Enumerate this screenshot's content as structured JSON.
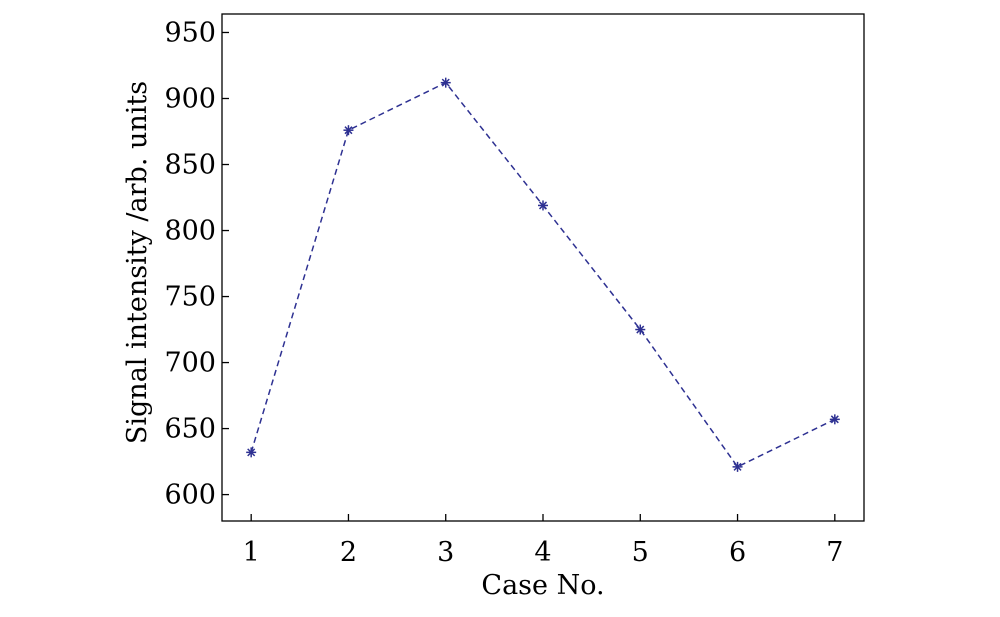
{
  "chart_data": {
    "type": "line",
    "title": "",
    "xlabel": "Case No.",
    "ylabel": "Signal intensity /arb. units",
    "xlim": [
      0.7,
      7.3
    ],
    "ylim": [
      580,
      964
    ],
    "xticks": [
      1,
      2,
      3,
      4,
      5,
      6,
      7
    ],
    "yticks": [
      600,
      650,
      700,
      750,
      800,
      850,
      900,
      950
    ],
    "grid": false,
    "series": [
      {
        "x": [
          1,
          2,
          3,
          4,
          5,
          6,
          7
        ],
        "y": [
          632,
          876,
          912,
          819,
          725,
          621,
          657
        ],
        "color": "#2e3192",
        "line_style": "dashed",
        "marker": "asterisk"
      }
    ]
  }
}
